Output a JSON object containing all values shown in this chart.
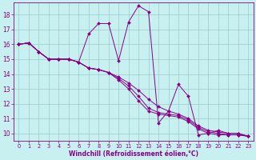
{
  "xlabel": "Windchill (Refroidissement éolien,°C)",
  "bg_color": "#c8f0f0",
  "line_color": "#880088",
  "grid_color": "#99cccc",
  "xlim": [
    -0.5,
    23.5
  ],
  "ylim": [
    9.5,
    18.8
  ],
  "yticks": [
    10,
    11,
    12,
    13,
    14,
    15,
    16,
    17,
    18
  ],
  "xticks": [
    0,
    1,
    2,
    3,
    4,
    5,
    6,
    7,
    8,
    9,
    10,
    11,
    12,
    13,
    14,
    15,
    16,
    17,
    18,
    19,
    20,
    21,
    22,
    23
  ],
  "line1_x": [
    0,
    1,
    2,
    3,
    4,
    5,
    6,
    7,
    8,
    9,
    10,
    11,
    12,
    13,
    14,
    15,
    16,
    17,
    18,
    19,
    20,
    21,
    22,
    23
  ],
  "line1_y": [
    16.0,
    16.1,
    15.5,
    15.0,
    15.0,
    15.0,
    14.8,
    16.7,
    17.4,
    17.4,
    14.9,
    17.5,
    18.6,
    18.2,
    10.7,
    11.5,
    13.3,
    12.5,
    9.9,
    10.0,
    10.2,
    10.0,
    10.0,
    9.8
  ],
  "line2_x": [
    0,
    1,
    2,
    3,
    4,
    5,
    6,
    7,
    8,
    9,
    10,
    11,
    12,
    13,
    14,
    15,
    16,
    17,
    18,
    19,
    20,
    21,
    22,
    23
  ],
  "line2_y": [
    16.0,
    16.1,
    15.5,
    15.0,
    15.0,
    15.0,
    14.8,
    14.4,
    14.3,
    14.1,
    13.8,
    13.4,
    12.9,
    12.3,
    11.8,
    11.5,
    11.3,
    11.0,
    10.5,
    10.2,
    10.1,
    10.0,
    10.0,
    9.8
  ],
  "line3_x": [
    0,
    1,
    2,
    3,
    4,
    5,
    6,
    7,
    8,
    9,
    10,
    11,
    12,
    13,
    14,
    15,
    16,
    17,
    18,
    19,
    20,
    21,
    22,
    23
  ],
  "line3_y": [
    16.0,
    16.1,
    15.5,
    15.0,
    15.0,
    15.0,
    14.8,
    14.4,
    14.3,
    14.1,
    13.7,
    13.2,
    12.5,
    11.7,
    11.4,
    11.3,
    11.2,
    10.9,
    10.4,
    10.1,
    10.0,
    9.9,
    9.9,
    9.8
  ],
  "line4_x": [
    0,
    1,
    2,
    3,
    4,
    5,
    6,
    7,
    8,
    9,
    10,
    11,
    12,
    13,
    14,
    15,
    16,
    17,
    18,
    19,
    20,
    21,
    22,
    23
  ],
  "line4_y": [
    16.0,
    16.1,
    15.5,
    15.0,
    15.0,
    15.0,
    14.8,
    14.4,
    14.3,
    14.1,
    13.6,
    13.0,
    12.2,
    11.5,
    11.3,
    11.2,
    11.1,
    10.8,
    10.3,
    10.0,
    9.9,
    9.9,
    9.9,
    9.8
  ]
}
